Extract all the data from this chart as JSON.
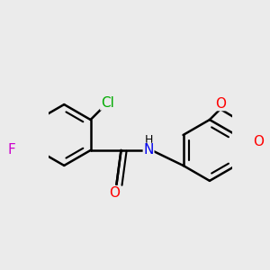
{
  "background_color": "#ebebeb",
  "bond_color": "#000000",
  "bond_width": 1.8,
  "atom_colors": {
    "F": "#cc00cc",
    "Cl": "#00aa00",
    "O": "#ff0000",
    "N": "#0000ee",
    "H": "#000000",
    "C": "#000000"
  },
  "fig_width": 3.0,
  "fig_height": 3.0,
  "dpi": 100,
  "xlim": [
    -0.5,
    5.5
  ],
  "ylim": [
    -2.5,
    2.5
  ]
}
